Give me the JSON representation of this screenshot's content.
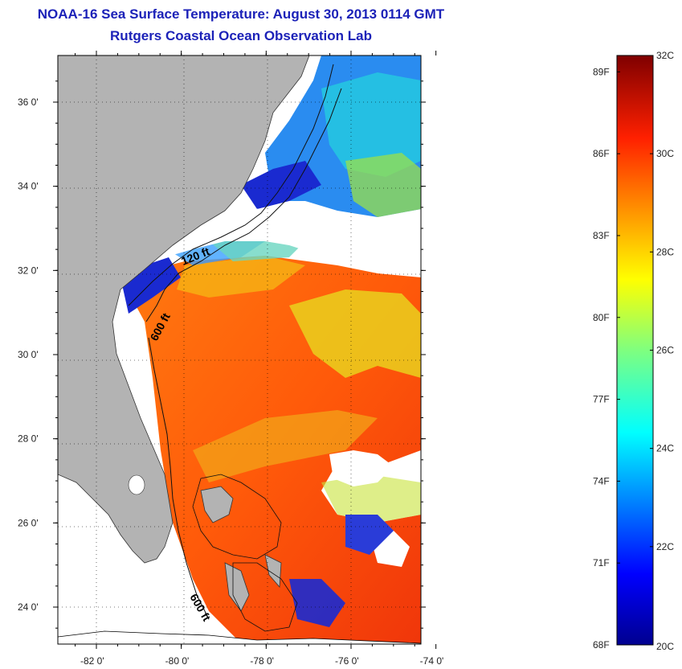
{
  "title": "NOAA-16 Sea Surface Temperature:  August 30, 2013 0114 GMT",
  "subtitle": "Rutgers Coastal Ocean Observation Lab",
  "map": {
    "lon_range": [
      -83,
      -73
    ],
    "lat_range": [
      23,
      37
    ],
    "lat_ticks": [
      {
        "value": 36,
        "label": "36 0'"
      },
      {
        "value": 34,
        "label": "34 0'"
      },
      {
        "value": 32,
        "label": "32 0'"
      },
      {
        "value": 30,
        "label": "30 0'"
      },
      {
        "value": 28,
        "label": "28 0'"
      },
      {
        "value": 26,
        "label": "26 0'"
      },
      {
        "value": 24,
        "label": "24 0'"
      }
    ],
    "lon_ticks": [
      {
        "value": -82,
        "label": "-82 0'"
      },
      {
        "value": -80,
        "label": "-80 0'"
      },
      {
        "value": -78,
        "label": "-78 0'"
      },
      {
        "value": -76,
        "label": "-76 0'"
      },
      {
        "value": -74,
        "label": "-74 0'"
      }
    ],
    "contour_labels": [
      "120 ft",
      "600 ft",
      "600 ft"
    ],
    "colors": {
      "land": "#b3b3b3",
      "cloud": "#ffffff",
      "grid": "#000000"
    }
  },
  "colorbar": {
    "celsius_labels": [
      "32C",
      "30C",
      "28C",
      "26C",
      "24C",
      "22C",
      "20C"
    ],
    "fahrenheit_labels": [
      "89F",
      "86F",
      "83F",
      "80F",
      "77F",
      "74F",
      "71F",
      "68F"
    ],
    "min_c": 20,
    "max_c": 32
  }
}
